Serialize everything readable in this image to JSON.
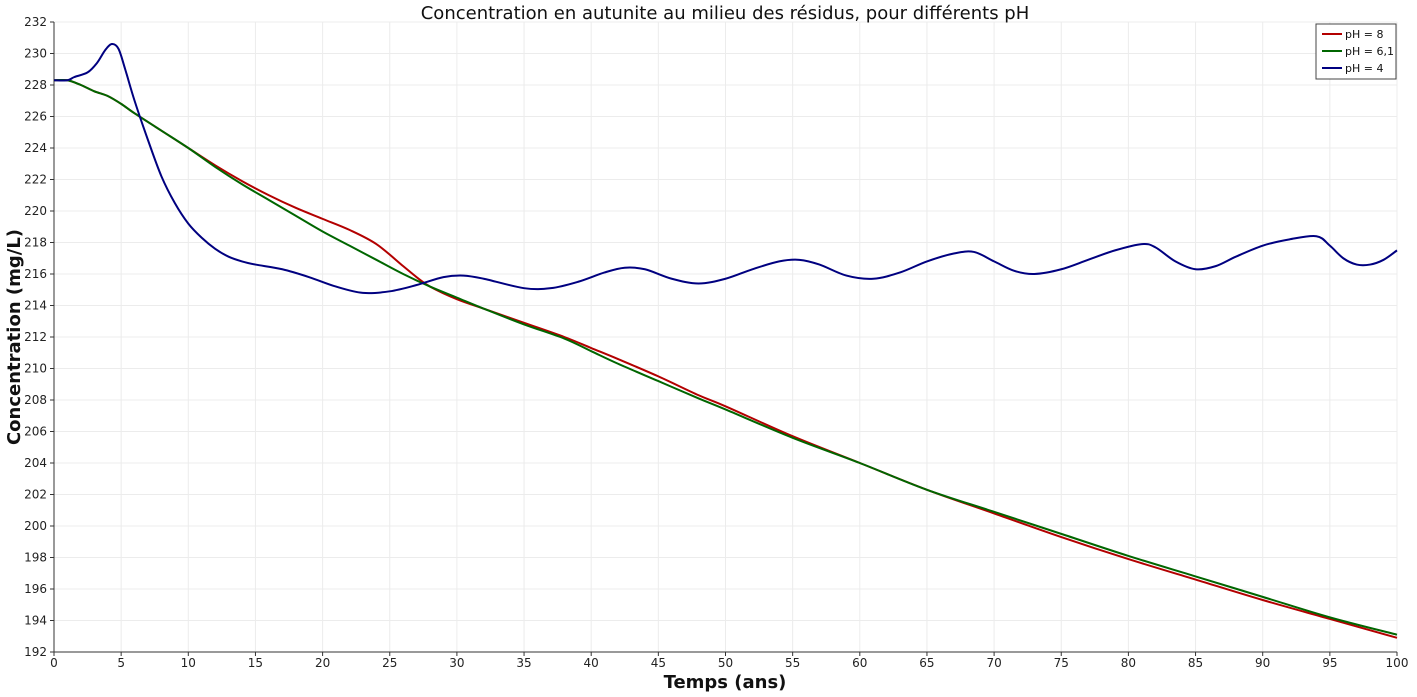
{
  "chart_data": {
    "type": "line",
    "title": "Concentration en autunite au milieu des résidus, pour différents pH",
    "xlabel": "Temps (ans)",
    "ylabel": "Concentration (mg/L)",
    "xlim": [
      0,
      100
    ],
    "ylim": [
      192,
      232
    ],
    "x_ticks": [
      0,
      5,
      10,
      15,
      20,
      25,
      30,
      35,
      40,
      45,
      50,
      55,
      60,
      65,
      70,
      75,
      80,
      85,
      90,
      95,
      100
    ],
    "y_ticks": [
      192,
      194,
      196,
      198,
      200,
      202,
      204,
      206,
      208,
      210,
      212,
      214,
      216,
      218,
      220,
      222,
      224,
      226,
      228,
      230,
      232
    ],
    "grid": true,
    "legend_position": "top-right",
    "series": [
      {
        "name": "pH = 8",
        "color": "#b30000",
        "points": [
          [
            0,
            228.3
          ],
          [
            1,
            228.3
          ],
          [
            2,
            228
          ],
          [
            3,
            227.6
          ],
          [
            4,
            227.3
          ],
          [
            5,
            226.8
          ],
          [
            6,
            226.2
          ],
          [
            8,
            225.1
          ],
          [
            10,
            224
          ],
          [
            12,
            222.9
          ],
          [
            14,
            221.9
          ],
          [
            16,
            221
          ],
          [
            18,
            220.2
          ],
          [
            20,
            219.5
          ],
          [
            22,
            218.8
          ],
          [
            24,
            217.9
          ],
          [
            26,
            216.5
          ],
          [
            27,
            215.8
          ],
          [
            28,
            215.2
          ],
          [
            30,
            214.4
          ],
          [
            32,
            213.8
          ],
          [
            35,
            212.9
          ],
          [
            38,
            212
          ],
          [
            40,
            211.3
          ],
          [
            42,
            210.6
          ],
          [
            45,
            209.5
          ],
          [
            48,
            208.3
          ],
          [
            50,
            207.6
          ],
          [
            55,
            205.7
          ],
          [
            60,
            204
          ],
          [
            65,
            202.3
          ],
          [
            70,
            200.8
          ],
          [
            75,
            199.3
          ],
          [
            80,
            197.9
          ],
          [
            85,
            196.6
          ],
          [
            90,
            195.3
          ],
          [
            95,
            194.1
          ],
          [
            100,
            192.9
          ]
        ]
      },
      {
        "name": "pH = 6,1",
        "color": "#006600",
        "points": [
          [
            0,
            228.3
          ],
          [
            1,
            228.3
          ],
          [
            2,
            228
          ],
          [
            3,
            227.6
          ],
          [
            4,
            227.3
          ],
          [
            5,
            226.8
          ],
          [
            6,
            226.2
          ],
          [
            8,
            225.1
          ],
          [
            10,
            224
          ],
          [
            12,
            222.8
          ],
          [
            14,
            221.7
          ],
          [
            16,
            220.7
          ],
          [
            18,
            219.7
          ],
          [
            20,
            218.7
          ],
          [
            22,
            217.8
          ],
          [
            24,
            216.9
          ],
          [
            26,
            216
          ],
          [
            28,
            215.2
          ],
          [
            30,
            214.5
          ],
          [
            32,
            213.8
          ],
          [
            35,
            212.8
          ],
          [
            38,
            211.9
          ],
          [
            40,
            211.1
          ],
          [
            42,
            210.3
          ],
          [
            45,
            209.2
          ],
          [
            48,
            208.1
          ],
          [
            50,
            207.4
          ],
          [
            55,
            205.6
          ],
          [
            60,
            204
          ],
          [
            65,
            202.3
          ],
          [
            70,
            200.9
          ],
          [
            75,
            199.5
          ],
          [
            80,
            198.1
          ],
          [
            85,
            196.8
          ],
          [
            90,
            195.5
          ],
          [
            95,
            194.2
          ],
          [
            100,
            193.1
          ]
        ]
      },
      {
        "name": "pH = 4",
        "color": "#000080",
        "points": [
          [
            0,
            228.3
          ],
          [
            1,
            228.3
          ],
          [
            1.5,
            228.5
          ],
          [
            2.5,
            228.8
          ],
          [
            3.2,
            229.4
          ],
          [
            3.8,
            230.2
          ],
          [
            4.3,
            230.6
          ],
          [
            4.8,
            230.3
          ],
          [
            5.3,
            229
          ],
          [
            6,
            227
          ],
          [
            7,
            224.5
          ],
          [
            8,
            222.2
          ],
          [
            9,
            220.5
          ],
          [
            10,
            219.2
          ],
          [
            11,
            218.3
          ],
          [
            12,
            217.6
          ],
          [
            13,
            217.1
          ],
          [
            14,
            216.8
          ],
          [
            15,
            216.6
          ],
          [
            17,
            216.3
          ],
          [
            19,
            215.8
          ],
          [
            21,
            215.2
          ],
          [
            23,
            214.8
          ],
          [
            25,
            214.9
          ],
          [
            27,
            215.3
          ],
          [
            29,
            215.8
          ],
          [
            30.5,
            215.9
          ],
          [
            32,
            215.7
          ],
          [
            35,
            215.1
          ],
          [
            37,
            215.1
          ],
          [
            39,
            215.5
          ],
          [
            41,
            216.1
          ],
          [
            42.5,
            216.4
          ],
          [
            44,
            216.3
          ],
          [
            46,
            215.7
          ],
          [
            48,
            215.4
          ],
          [
            50,
            215.7
          ],
          [
            52,
            216.3
          ],
          [
            54,
            216.8
          ],
          [
            55.5,
            216.9
          ],
          [
            57,
            216.6
          ],
          [
            59,
            215.9
          ],
          [
            61,
            215.7
          ],
          [
            63,
            216.1
          ],
          [
            65,
            216.8
          ],
          [
            67,
            217.3
          ],
          [
            68.5,
            217.4
          ],
          [
            70,
            216.8
          ],
          [
            71.5,
            216.2
          ],
          [
            73,
            216
          ],
          [
            75,
            216.3
          ],
          [
            77,
            216.9
          ],
          [
            79,
            217.5
          ],
          [
            81,
            217.9
          ],
          [
            82,
            217.7
          ],
          [
            83.5,
            216.8
          ],
          [
            85,
            216.3
          ],
          [
            86.5,
            216.5
          ],
          [
            88,
            217.1
          ],
          [
            90,
            217.8
          ],
          [
            92,
            218.2
          ],
          [
            94,
            218.4
          ],
          [
            95,
            217.8
          ],
          [
            96,
            217
          ],
          [
            97,
            216.6
          ],
          [
            98,
            216.6
          ],
          [
            99,
            216.9
          ],
          [
            100,
            217.5
          ]
        ]
      }
    ]
  }
}
